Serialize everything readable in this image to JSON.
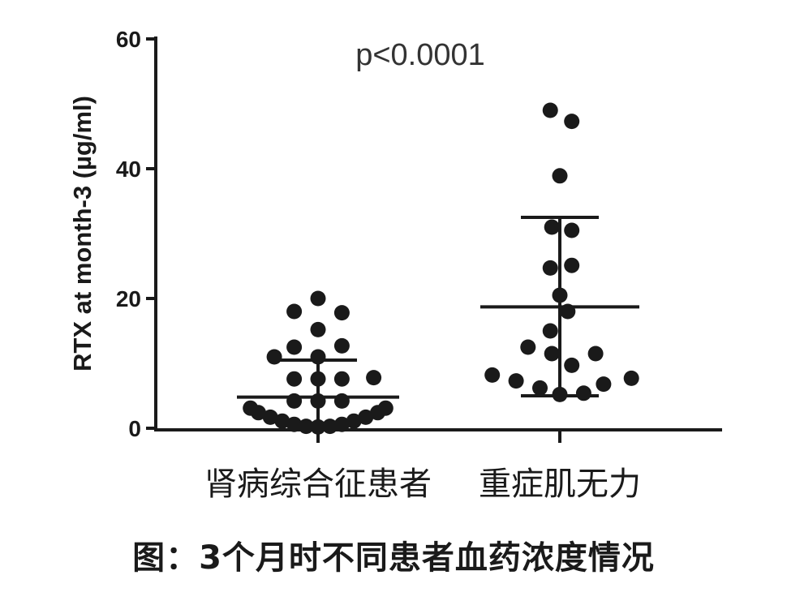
{
  "caption": "图：3个月时不同患者血药浓度情况",
  "chart_data": {
    "type": "scatter",
    "ylabel": "RTX at month-3 (µg/ml)",
    "ylim": [
      0,
      60
    ],
    "yticks": [
      0,
      20,
      40,
      60
    ],
    "annotation": "p<0.0001",
    "categories": [
      "肾病综合征患者",
      "重症肌无力"
    ],
    "colors": {
      "points": "#1a1a1a",
      "axes": "#1a1a1a"
    },
    "series": [
      {
        "category": "肾病综合征患者",
        "mean": 4.8,
        "sd_upper": 10.5,
        "sd_lower": 0,
        "values": [
          {
            "offset": 0.0,
            "y": 20.0
          },
          {
            "offset": -0.3,
            "y": 18.0
          },
          {
            "offset": 0.3,
            "y": 17.8
          },
          {
            "offset": 0.0,
            "y": 15.2
          },
          {
            "offset": -0.3,
            "y": 12.5
          },
          {
            "offset": 0.3,
            "y": 12.7
          },
          {
            "offset": -0.55,
            "y": 11.0
          },
          {
            "offset": 0.0,
            "y": 11.0
          },
          {
            "offset": -0.3,
            "y": 7.6
          },
          {
            "offset": 0.0,
            "y": 7.6
          },
          {
            "offset": 0.3,
            "y": 7.6
          },
          {
            "offset": 0.7,
            "y": 7.8
          },
          {
            "offset": -0.3,
            "y": 4.2
          },
          {
            "offset": 0.0,
            "y": 4.2
          },
          {
            "offset": 0.3,
            "y": 4.2
          },
          {
            "offset": -0.85,
            "y": 3.1
          },
          {
            "offset": 0.85,
            "y": 3.1
          },
          {
            "offset": -0.75,
            "y": 2.4
          },
          {
            "offset": 0.75,
            "y": 2.4
          },
          {
            "offset": -0.6,
            "y": 1.7
          },
          {
            "offset": 0.6,
            "y": 1.7
          },
          {
            "offset": -0.45,
            "y": 1.1
          },
          {
            "offset": 0.45,
            "y": 1.1
          },
          {
            "offset": -0.3,
            "y": 0.6
          },
          {
            "offset": 0.3,
            "y": 0.6
          },
          {
            "offset": -0.15,
            "y": 0.3
          },
          {
            "offset": 0.15,
            "y": 0.3
          },
          {
            "offset": 0.0,
            "y": 0.2
          }
        ]
      },
      {
        "category": "重症肌无力",
        "mean": 18.7,
        "sd_upper": 32.5,
        "sd_lower": 5.0,
        "values": [
          {
            "offset": -0.12,
            "y": 49.0
          },
          {
            "offset": 0.15,
            "y": 47.3
          },
          {
            "offset": 0.0,
            "y": 38.9
          },
          {
            "offset": -0.1,
            "y": 31.0
          },
          {
            "offset": 0.15,
            "y": 30.5
          },
          {
            "offset": -0.12,
            "y": 24.7
          },
          {
            "offset": 0.15,
            "y": 25.1
          },
          {
            "offset": 0.0,
            "y": 20.5
          },
          {
            "offset": 0.1,
            "y": 18.0
          },
          {
            "offset": -0.12,
            "y": 15.0
          },
          {
            "offset": -0.4,
            "y": 12.5
          },
          {
            "offset": -0.1,
            "y": 11.5
          },
          {
            "offset": 0.45,
            "y": 11.5
          },
          {
            "offset": 0.15,
            "y": 9.7
          },
          {
            "offset": -0.85,
            "y": 8.2
          },
          {
            "offset": -0.55,
            "y": 7.3
          },
          {
            "offset": 0.55,
            "y": 6.8
          },
          {
            "offset": 0.9,
            "y": 7.7
          },
          {
            "offset": -0.25,
            "y": 6.2
          },
          {
            "offset": 0.0,
            "y": 5.2
          },
          {
            "offset": 0.3,
            "y": 5.4
          }
        ]
      }
    ]
  }
}
